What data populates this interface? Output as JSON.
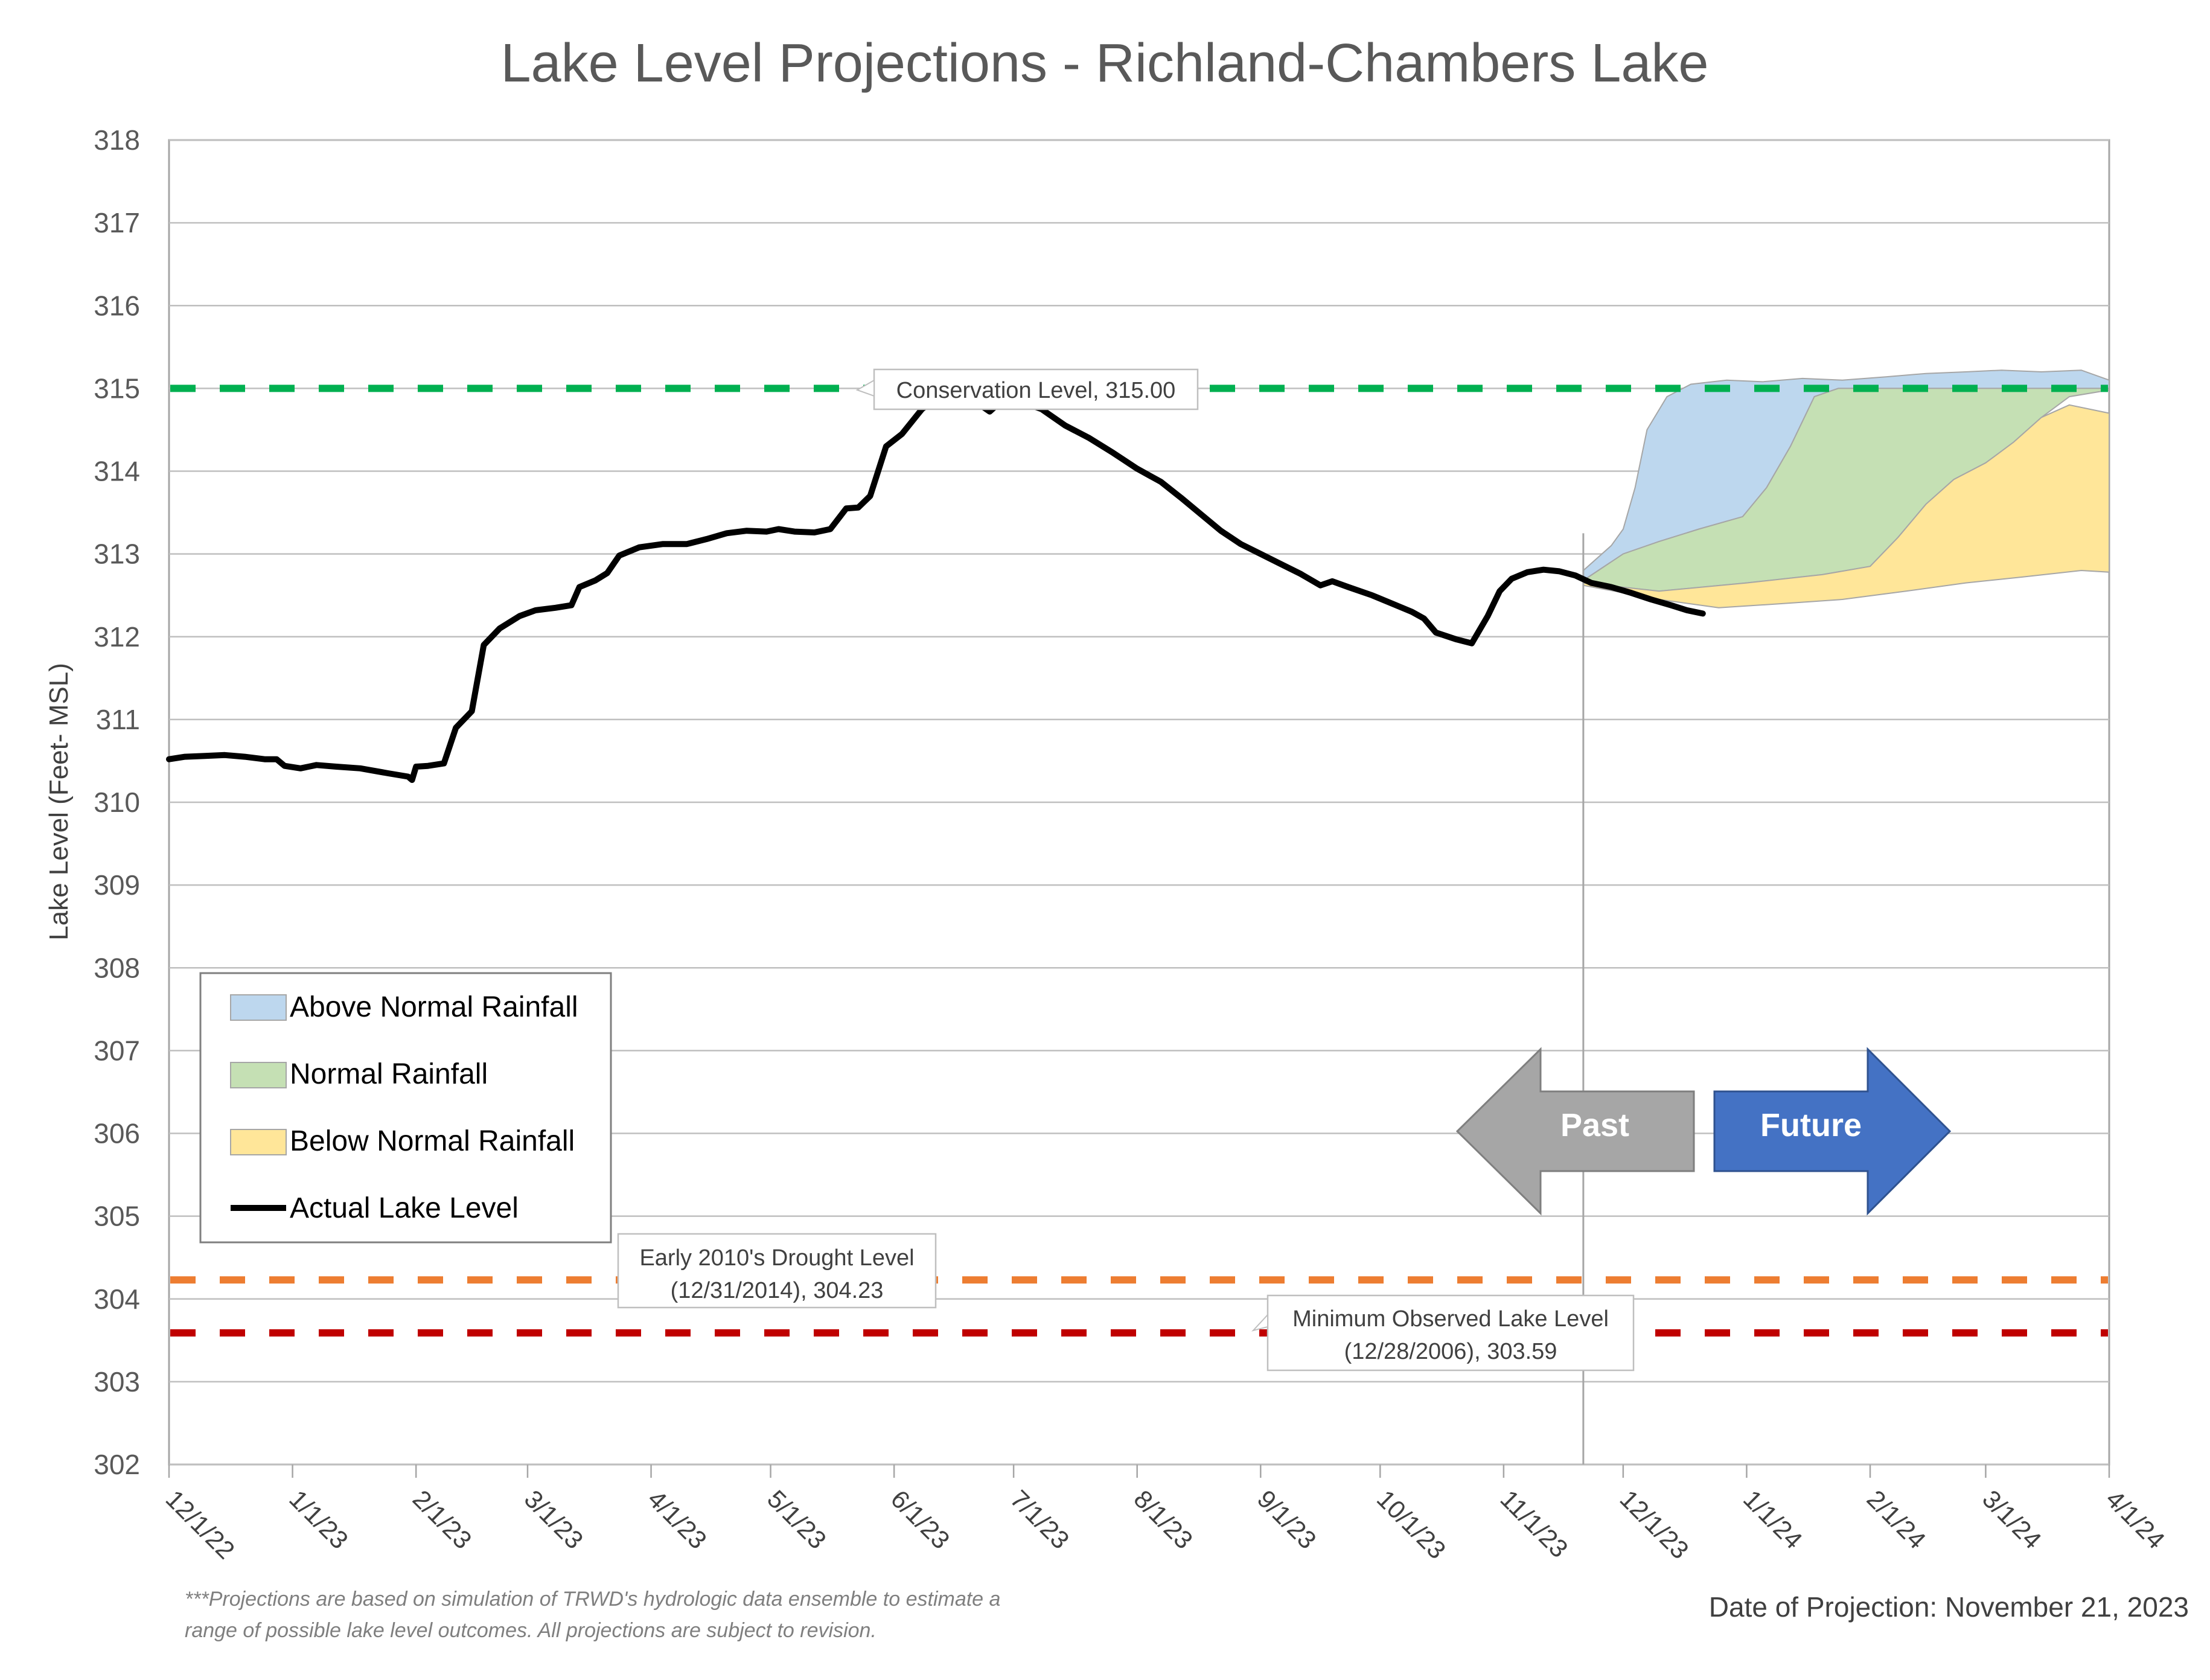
{
  "chart_data": {
    "type": "area",
    "title": "Lake Level Projections - Richland-Chambers Lake",
    "ylabel": "Lake Level (Feet- MSL)",
    "xlabel": "",
    "ylim": [
      302,
      318
    ],
    "xlim": [
      "2022-12-01",
      "2024-04-01"
    ],
    "y_ticks": [
      "302",
      "303",
      "304",
      "305",
      "306",
      "307",
      "308",
      "309",
      "310",
      "311",
      "312",
      "313",
      "314",
      "315",
      "316",
      "317",
      "318"
    ],
    "x_ticks": [
      "12/1/22",
      "1/1/23",
      "2/1/23",
      "3/1/23",
      "4/1/23",
      "5/1/23",
      "6/1/23",
      "7/1/23",
      "8/1/23",
      "9/1/23",
      "10/1/23",
      "11/1/23",
      "12/1/23",
      "1/1/24",
      "2/1/24",
      "3/1/24",
      "4/1/24"
    ],
    "x_tick_dates": [
      "2022-12-01",
      "2023-01-01",
      "2023-02-01",
      "2023-03-01",
      "2023-04-01",
      "2023-05-01",
      "2023-06-01",
      "2023-07-01",
      "2023-08-01",
      "2023-09-01",
      "2023-10-01",
      "2023-11-01",
      "2023-12-01",
      "2024-01-01",
      "2024-02-01",
      "2024-03-01",
      "2024-04-01"
    ],
    "grid": true,
    "legend_position": "bottom-left",
    "legend": [
      {
        "label": "Above Normal Rainfall",
        "color": "#bdd7ee"
      },
      {
        "label": "Normal Rainfall",
        "color": "#c5e0b4"
      },
      {
        "label": "Below Normal Rainfall",
        "color": "#ffe699"
      },
      {
        "label": "Actual Lake Level",
        "color": "#000000"
      }
    ],
    "reference_lines": [
      {
        "value": 315.0,
        "color": "#00b050",
        "label": "Conservation Level, 315.00"
      },
      {
        "value": 304.23,
        "color": "#ed7d31",
        "label_line1": "Early 2010's Drought Level",
        "label_line2": "(12/31/2014), 304.23"
      },
      {
        "value": 303.59,
        "color": "#c00000",
        "label_line1": "Minimum Observed Lake Level",
        "label_line2": "(12/28/2006), 303.59"
      }
    ],
    "projection_date": "2023-11-21",
    "series": [
      {
        "name": "Actual Lake Level",
        "color": "#000000",
        "points": [
          [
            "2022-12-01",
            310.52
          ],
          [
            "2022-12-05",
            310.55
          ],
          [
            "2022-12-10",
            310.56
          ],
          [
            "2022-12-15",
            310.57
          ],
          [
            "2022-12-20",
            310.55
          ],
          [
            "2022-12-25",
            310.52
          ],
          [
            "2022-12-28",
            310.52
          ],
          [
            "2022-12-30",
            310.44
          ],
          [
            "2023-01-03",
            310.41
          ],
          [
            "2023-01-07",
            310.45
          ],
          [
            "2023-01-12",
            310.43
          ],
          [
            "2023-01-18",
            310.41
          ],
          [
            "2023-01-25",
            310.35
          ],
          [
            "2023-01-30",
            310.31
          ],
          [
            "2023-01-31",
            310.27
          ],
          [
            "2023-02-01",
            310.43
          ],
          [
            "2023-02-04",
            310.44
          ],
          [
            "2023-02-08",
            310.47
          ],
          [
            "2023-02-11",
            310.9
          ],
          [
            "2023-02-15",
            311.1
          ],
          [
            "2023-02-18",
            311.9
          ],
          [
            "2023-02-22",
            312.1
          ],
          [
            "2023-02-27",
            312.25
          ],
          [
            "2023-03-03",
            312.32
          ],
          [
            "2023-03-08",
            312.35
          ],
          [
            "2023-03-12",
            312.38
          ],
          [
            "2023-03-14",
            312.6
          ],
          [
            "2023-03-18",
            312.68
          ],
          [
            "2023-03-21",
            312.77
          ],
          [
            "2023-03-24",
            312.98
          ],
          [
            "2023-03-29",
            313.08
          ],
          [
            "2023-04-04",
            313.12
          ],
          [
            "2023-04-10",
            313.12
          ],
          [
            "2023-04-15",
            313.18
          ],
          [
            "2023-04-20",
            313.25
          ],
          [
            "2023-04-25",
            313.28
          ],
          [
            "2023-04-30",
            313.27
          ],
          [
            "2023-05-03",
            313.3
          ],
          [
            "2023-05-07",
            313.27
          ],
          [
            "2023-05-12",
            313.26
          ],
          [
            "2023-05-16",
            313.3
          ],
          [
            "2023-05-20",
            313.55
          ],
          [
            "2023-05-23",
            313.56
          ],
          [
            "2023-05-26",
            313.7
          ],
          [
            "2023-05-30",
            314.3
          ],
          [
            "2023-06-03",
            314.45
          ],
          [
            "2023-06-08",
            314.75
          ],
          [
            "2023-06-13",
            314.93
          ],
          [
            "2023-06-17",
            314.9
          ],
          [
            "2023-06-22",
            314.82
          ],
          [
            "2023-06-25",
            314.72
          ],
          [
            "2023-06-28",
            314.85
          ],
          [
            "2023-07-02",
            314.85
          ],
          [
            "2023-07-08",
            314.75
          ],
          [
            "2023-07-14",
            314.55
          ],
          [
            "2023-07-20",
            314.4
          ],
          [
            "2023-07-26",
            314.22
          ],
          [
            "2023-08-01",
            314.03
          ],
          [
            "2023-08-07",
            313.87
          ],
          [
            "2023-08-12",
            313.68
          ],
          [
            "2023-08-17",
            313.48
          ],
          [
            "2023-08-22",
            313.28
          ],
          [
            "2023-08-27",
            313.12
          ],
          [
            "2023-09-01",
            313.0
          ],
          [
            "2023-09-06",
            312.88
          ],
          [
            "2023-09-11",
            312.76
          ],
          [
            "2023-09-16",
            312.62
          ],
          [
            "2023-09-19",
            312.67
          ],
          [
            "2023-09-23",
            312.6
          ],
          [
            "2023-09-29",
            312.5
          ],
          [
            "2023-10-04",
            312.4
          ],
          [
            "2023-10-09",
            312.3
          ],
          [
            "2023-10-12",
            312.22
          ],
          [
            "2023-10-15",
            312.05
          ],
          [
            "2023-10-20",
            311.97
          ],
          [
            "2023-10-24",
            311.92
          ],
          [
            "2023-10-28",
            312.25
          ],
          [
            "2023-10-31",
            312.55
          ],
          [
            "2023-11-03",
            312.7
          ],
          [
            "2023-11-07",
            312.78
          ],
          [
            "2023-11-11",
            312.81
          ],
          [
            "2023-11-15",
            312.79
          ],
          [
            "2023-11-19",
            312.74
          ],
          [
            "2023-11-23",
            312.65
          ],
          [
            "2023-11-28",
            312.6
          ],
          [
            "2023-12-03",
            312.53
          ],
          [
            "2023-12-08",
            312.45
          ],
          [
            "2023-12-13",
            312.38
          ],
          [
            "2023-12-17",
            312.32
          ],
          [
            "2023-12-21",
            312.28
          ]
        ]
      },
      {
        "name": "Above Normal Rainfall",
        "color": "#bdd7ee",
        "upper": [
          [
            "2023-11-21",
            312.8
          ],
          [
            "2023-11-28",
            313.1
          ],
          [
            "2023-12-01",
            313.3
          ],
          [
            "2023-12-04",
            313.8
          ],
          [
            "2023-12-07",
            314.5
          ],
          [
            "2023-12-12",
            314.9
          ],
          [
            "2023-12-18",
            315.05
          ],
          [
            "2023-12-27",
            315.1
          ],
          [
            "2024-01-05",
            315.08
          ],
          [
            "2024-01-15",
            315.12
          ],
          [
            "2024-01-25",
            315.1
          ],
          [
            "2024-02-05",
            315.14
          ],
          [
            "2024-02-15",
            315.18
          ],
          [
            "2024-02-25",
            315.2
          ],
          [
            "2024-03-05",
            315.22
          ],
          [
            "2024-03-15",
            315.2
          ],
          [
            "2024-03-25",
            315.22
          ],
          [
            "2024-04-01",
            315.1
          ]
        ],
        "lower": [
          [
            "2023-11-21",
            312.68
          ],
          [
            "2023-12-01",
            313.0
          ],
          [
            "2023-12-10",
            313.15
          ],
          [
            "2023-12-20",
            313.3
          ],
          [
            "2023-12-31",
            313.45
          ],
          [
            "2024-01-06",
            313.8
          ],
          [
            "2024-01-12",
            314.3
          ],
          [
            "2024-01-18",
            314.9
          ],
          [
            "2024-01-24",
            315.0
          ],
          [
            "2024-04-01",
            315.0
          ]
        ]
      },
      {
        "name": "Normal Rainfall",
        "color": "#c5e0b4",
        "upper": [
          [
            "2023-11-21",
            312.68
          ],
          [
            "2023-12-01",
            313.0
          ],
          [
            "2023-12-10",
            313.15
          ],
          [
            "2023-12-20",
            313.3
          ],
          [
            "2023-12-31",
            313.45
          ],
          [
            "2024-01-06",
            313.8
          ],
          [
            "2024-01-12",
            314.3
          ],
          [
            "2024-01-18",
            314.9
          ],
          [
            "2024-01-24",
            315.0
          ],
          [
            "2024-04-01",
            315.0
          ]
        ],
        "lower": [
          [
            "2023-11-21",
            312.65
          ],
          [
            "2023-12-10",
            312.55
          ],
          [
            "2024-01-01",
            312.65
          ],
          [
            "2024-01-20",
            312.75
          ],
          [
            "2024-02-01",
            312.85
          ],
          [
            "2024-02-08",
            313.2
          ],
          [
            "2024-02-15",
            313.6
          ],
          [
            "2024-02-22",
            313.9
          ],
          [
            "2024-03-01",
            314.1
          ],
          [
            "2024-03-08",
            314.35
          ],
          [
            "2024-03-15",
            314.65
          ],
          [
            "2024-03-22",
            314.9
          ],
          [
            "2024-04-01",
            314.98
          ]
        ]
      },
      {
        "name": "Below Normal Rainfall",
        "color": "#ffe699",
        "upper": [
          [
            "2023-11-21",
            312.65
          ],
          [
            "2023-12-10",
            312.55
          ],
          [
            "2024-01-01",
            312.65
          ],
          [
            "2024-01-20",
            312.75
          ],
          [
            "2024-02-01",
            312.85
          ],
          [
            "2024-02-08",
            313.2
          ],
          [
            "2024-02-15",
            313.6
          ],
          [
            "2024-02-22",
            313.9
          ],
          [
            "2024-03-01",
            314.1
          ],
          [
            "2024-03-08",
            314.35
          ],
          [
            "2024-03-15",
            314.65
          ],
          [
            "2024-03-22",
            314.8
          ],
          [
            "2024-04-01",
            314.7
          ]
        ],
        "lower": [
          [
            "2023-11-21",
            312.62
          ],
          [
            "2023-12-10",
            312.45
          ],
          [
            "2023-12-25",
            312.35
          ],
          [
            "2024-01-10",
            312.4
          ],
          [
            "2024-01-25",
            312.45
          ],
          [
            "2024-02-10",
            312.55
          ],
          [
            "2024-02-25",
            312.65
          ],
          [
            "2024-03-10",
            312.72
          ],
          [
            "2024-03-25",
            312.8
          ],
          [
            "2024-04-01",
            312.78
          ]
        ]
      }
    ],
    "arrows": {
      "past": "Past",
      "future": "Future"
    },
    "footnote_line1": "***Projections are based on simulation of TRWD's hydrologic data ensemble to estimate a",
    "footnote_line2": "range of possible lake level outcomes.  All projections are subject to revision.",
    "projection_label": "Date of Projection: November 21, 2023"
  }
}
